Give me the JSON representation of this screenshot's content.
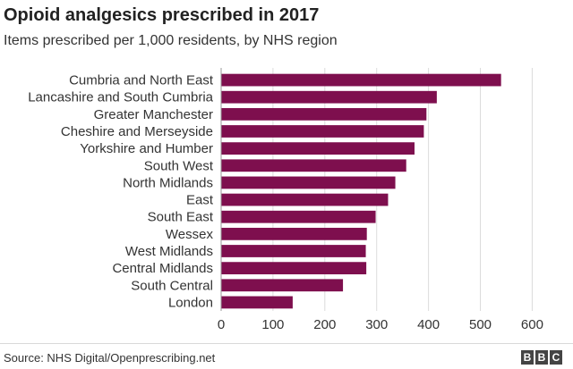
{
  "header": {
    "title": "Opioid analgesics prescribed in 2017",
    "subtitle": "Items prescribed per 1,000 residents, by NHS region"
  },
  "footer": {
    "source": "Source: NHS Digital/Openprescribing.net",
    "logo_letters": [
      "B",
      "B",
      "C"
    ]
  },
  "colors": {
    "bar": "#7e0f4e",
    "grid": "#dcdcdc",
    "axis": "#999999"
  },
  "chart_data": {
    "type": "bar",
    "orientation": "horizontal",
    "title": "Opioid analgesics prescribed in 2017",
    "subtitle": "Items prescribed per 1,000 residents, by NHS region",
    "categories": [
      "Cumbria and North East",
      "Lancashire and South Cumbria",
      "Greater Manchester",
      "Cheshire and Merseyside",
      "Yorkshire and Humber",
      "South West",
      "North Midlands",
      "East",
      "South East",
      "Wessex",
      "West Midlands",
      "Central Midlands",
      "South Central",
      "London"
    ],
    "values": [
      540,
      416,
      396,
      391,
      373,
      357,
      336,
      322,
      298,
      281,
      279,
      280,
      235,
      138
    ],
    "xlim": [
      0,
      620
    ],
    "xticks": [
      0,
      100,
      200,
      300,
      400,
      500,
      600
    ],
    "grid": true
  }
}
